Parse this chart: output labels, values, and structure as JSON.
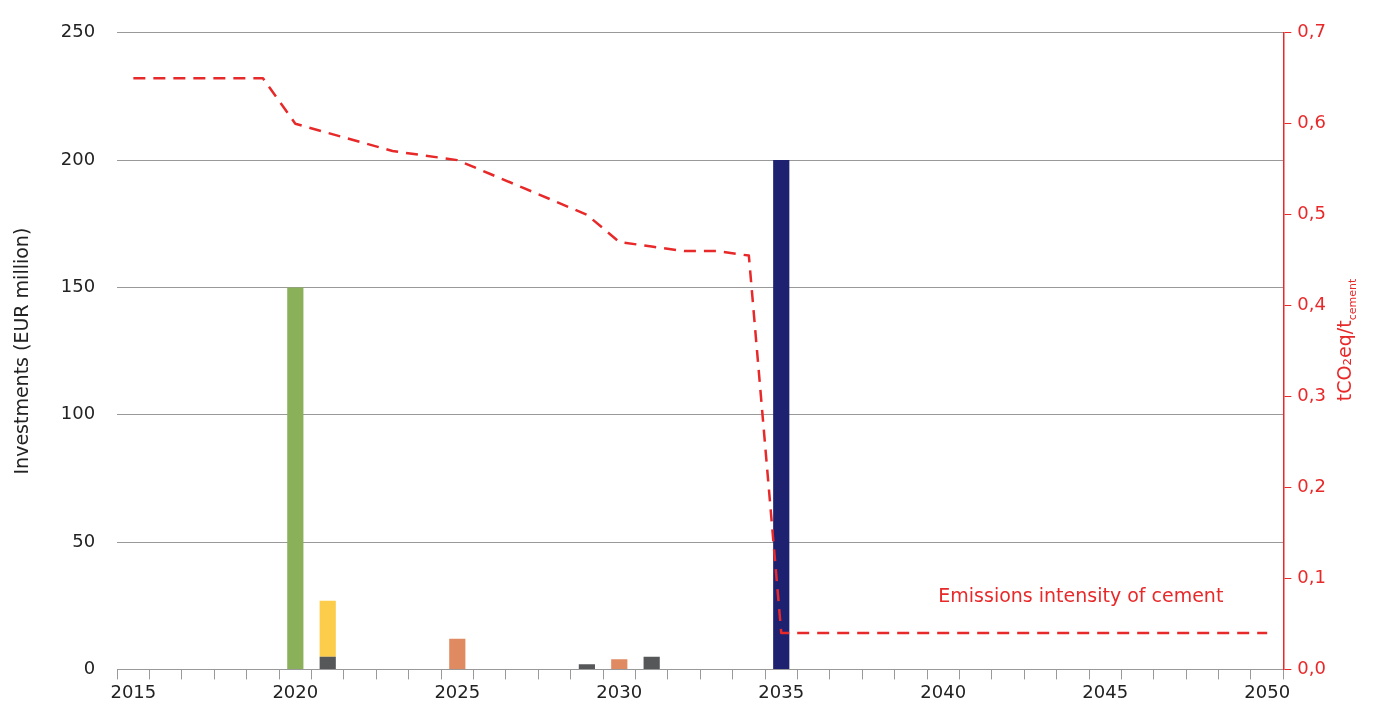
{
  "chart_data": {
    "type": "bar",
    "stacked": true,
    "ylabel": "Investments (EUR million)",
    "y2label": "tCO₂eq/t$_{cement}$",
    "categories": [
      "2015",
      null,
      null,
      null,
      null,
      "2020",
      null,
      null,
      null,
      null,
      "2025",
      null,
      null,
      null,
      null,
      "2030",
      null,
      null,
      null,
      null,
      "2035",
      null,
      null,
      null,
      null,
      "2040",
      null,
      null,
      null,
      null,
      "2045",
      null,
      null,
      null,
      null,
      "2050"
    ],
    "series": [
      {
        "color": "#555759",
        "values": [
          null,
          null,
          null,
          null,
          null,
          null,
          5,
          null,
          null,
          null,
          null,
          null,
          null,
          null,
          2,
          null,
          5,
          null,
          null,
          null,
          null,
          null,
          null,
          null,
          null,
          null,
          null,
          null,
          null,
          null,
          null,
          null,
          null,
          null,
          null,
          null
        ]
      },
      {
        "color": "#fccd4a",
        "values": [
          null,
          null,
          null,
          null,
          null,
          null,
          22,
          null,
          null,
          null,
          null,
          null,
          null,
          null,
          null,
          null,
          null,
          null,
          null,
          null,
          null,
          null,
          null,
          null,
          null,
          null,
          null,
          null,
          null,
          null,
          null,
          null,
          null,
          null,
          null,
          null
        ]
      },
      {
        "color": "#8ab05a",
        "values": [
          null,
          null,
          null,
          null,
          null,
          150,
          null,
          null,
          null,
          null,
          null,
          null,
          null,
          null,
          null,
          null,
          null,
          null,
          null,
          null,
          null,
          null,
          null,
          null,
          null,
          null,
          null,
          null,
          null,
          null,
          null,
          null,
          null,
          null,
          null,
          null
        ]
      },
      {
        "color": "#e08a62",
        "values": [
          null,
          null,
          null,
          null,
          null,
          null,
          null,
          null,
          null,
          null,
          12,
          null,
          null,
          null,
          null,
          4,
          null,
          null,
          null,
          null,
          null,
          null,
          null,
          null,
          null,
          null,
          null,
          null,
          null,
          null,
          null,
          null,
          null,
          null,
          null,
          null
        ]
      },
      {
        "color": "#1e2070",
        "values": [
          null,
          null,
          null,
          null,
          null,
          null,
          null,
          null,
          null,
          null,
          null,
          null,
          null,
          null,
          null,
          null,
          null,
          null,
          null,
          null,
          200,
          null,
          null,
          null,
          null,
          null,
          null,
          null,
          null,
          null,
          null,
          null,
          null,
          null,
          null,
          null
        ]
      },
      {
        "type": "line",
        "axis": "y2",
        "color": "#e8292a",
        "line_style": "dashed",
        "marker": "none",
        "values": [
          0.65,
          0.65,
          0.65,
          0.65,
          0.65,
          0.6,
          0.59,
          0.58,
          0.57,
          0.565,
          0.56,
          0.545,
          0.53,
          0.515,
          0.5,
          0.47,
          0.465,
          0.46,
          0.46,
          0.455,
          0.04,
          0.04,
          0.04,
          0.04,
          0.04,
          0.04,
          0.04,
          0.04,
          0.04,
          0.04,
          0.04,
          0.04,
          0.04,
          0.04,
          0.04,
          0.04
        ]
      }
    ],
    "ylim": [
      0,
      250
    ],
    "yticks": [
      0,
      50,
      100,
      150,
      200,
      250
    ],
    "y2lim": [
      0,
      0.7
    ],
    "y2ticks": [
      {
        "value": 0,
        "label": "0,0"
      },
      {
        "value": 0.1,
        "label": "0,1"
      },
      {
        "value": 0.2,
        "label": "0,2"
      },
      {
        "value": 0.3,
        "label": "0,3"
      },
      {
        "value": 0.4,
        "label": "0,4"
      },
      {
        "value": 0.5,
        "label": "0,5"
      },
      {
        "value": 0.6,
        "label": "0,6"
      },
      {
        "value": 0.7,
        "label": "0,7"
      }
    ],
    "annotations": [
      "Emissions intensity of cement"
    ],
    "grid": "y",
    "legend": false
  }
}
